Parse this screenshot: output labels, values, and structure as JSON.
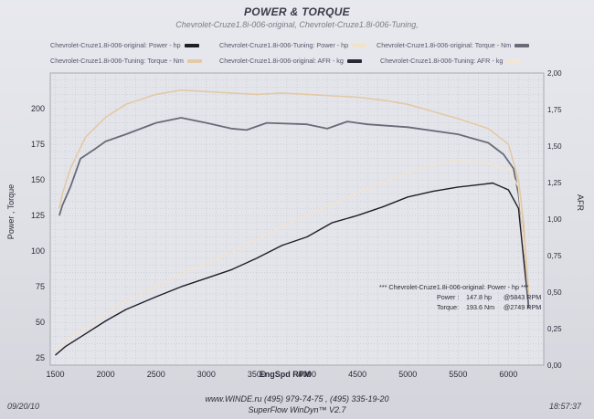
{
  "header": {
    "title": "POWER & TORQUE",
    "subtitle": "Chevrolet-Cruze1.8i-006-original, Chevrolet-Cruze1.8i-006-Tuning,"
  },
  "legend": [
    {
      "label": "Chevrolet-Cruze1.8i-006-original: Power - hp",
      "color": "#1e1e24"
    },
    {
      "label": "Chevrolet-Cruze1.8i-006-Tuning: Power - hp",
      "color": "#f2e2cc"
    },
    {
      "label": "Chevrolet-Cruze1.8i-006-original: Torque - Nm",
      "color": "#6a6a78"
    },
    {
      "label": "Chevrolet-Cruze1.8i-006-Tuning: Torque - Nm",
      "color": "#e3c9a5"
    },
    {
      "label": "Chevrolet-Cruze1.8i-006-original: AFR - kg",
      "color": "#2a2a36"
    },
    {
      "label": "Chevrolet-Cruze1.8i-006-Tuning: AFR - kg",
      "color": "#f3e6d6"
    }
  ],
  "info_box": {
    "heading": "*** Chevrolet-Cruze1.8i-006-original: Power - hp ***",
    "power_label": "Power :",
    "power_value": "147.8 hp",
    "power_at": "@5843 RPM",
    "torque_label": "Torque:",
    "torque_value": "193.6 Nm",
    "torque_at": "@2749 RPM"
  },
  "footer": {
    "date": "09/20/10",
    "time": "18:57:37",
    "contact": "www.WINDE.ru   (495) 979-74-75 , (495) 335-19-20",
    "software": "SuperFlow WinDyn™ V2.7"
  },
  "chart_data": {
    "type": "line",
    "title": "POWER & TORQUE",
    "xlabel": "EngSpd  RPM",
    "ylabel": "Power , Torque",
    "y2label": "AFR",
    "xlim": [
      1450,
      6350
    ],
    "ylim": [
      20,
      225
    ],
    "y2lim": [
      0,
      2.0
    ],
    "x_ticks": [
      1500,
      2000,
      2500,
      3000,
      3500,
      4000,
      4500,
      5000,
      5500,
      6000
    ],
    "y_ticks": [
      25,
      50,
      75,
      100,
      125,
      150,
      175,
      200
    ],
    "y2_ticks": [
      "0,00",
      "0,25",
      "0,50",
      "0,75",
      "1,00",
      "1,25",
      "1,50",
      "1,75",
      "2,00"
    ],
    "grid": true,
    "series": [
      {
        "name": "Chevrolet-Cruze1.8i-006-original: Power - hp",
        "color": "#1e1e24",
        "width": 1.4,
        "x": [
          1500,
          1600,
          1800,
          2000,
          2200,
          2500,
          2749,
          3000,
          3250,
          3500,
          3750,
          4000,
          4250,
          4500,
          4750,
          5000,
          5250,
          5500,
          5750,
          5843,
          6000,
          6100,
          6200
        ],
        "y": [
          27,
          33,
          42,
          51,
          59,
          68,
          75,
          81,
          87,
          95,
          104,
          110,
          120,
          125,
          131,
          138,
          142,
          145,
          147,
          147.8,
          143,
          130,
          60
        ]
      },
      {
        "name": "Chevrolet-Cruze1.8i-006-original: Torque - Nm",
        "color": "#6a6a78",
        "width": 1.8,
        "x": [
          1540,
          1570,
          1650,
          1750,
          1900,
          2000,
          2200,
          2500,
          2749,
          3000,
          3250,
          3400,
          3600,
          4000,
          4200,
          4400,
          4600,
          5000,
          5500,
          5800,
          5950,
          6050,
          6100,
          6150,
          6200
        ],
        "y": [
          125,
          132,
          145,
          165,
          172,
          177,
          182,
          190,
          193.6,
          190,
          186,
          185,
          190,
          189,
          186,
          191,
          189,
          187,
          182,
          176,
          168,
          158,
          140,
          110,
          60
        ]
      },
      {
        "name": "Chevrolet-Cruze1.8i-006-Tuning: Power - hp",
        "color": "#f2e2cc",
        "width": 1.4,
        "x": [
          1500,
          1600,
          1800,
          2000,
          2200,
          2500,
          2750,
          3000,
          3250,
          3500,
          3750,
          4000,
          4250,
          4500,
          4750,
          5000,
          5250,
          5500,
          5750,
          6000,
          6100,
          6200
        ],
        "y": [
          30,
          37,
          46,
          56,
          65,
          75,
          84,
          91,
          99,
          108,
          117,
          125,
          133,
          141,
          148,
          155,
          160,
          164,
          162,
          158,
          145,
          70
        ]
      },
      {
        "name": "Chevrolet-Cruze1.8i-006-Tuning: Torque - Nm",
        "color": "#e3c9a5",
        "width": 1.6,
        "x": [
          1540,
          1570,
          1650,
          1800,
          2000,
          2200,
          2500,
          2750,
          3000,
          3250,
          3500,
          3750,
          4000,
          4250,
          4500,
          4750,
          5000,
          5250,
          5500,
          5800,
          6000,
          6100,
          6150,
          6200
        ],
        "y": [
          130,
          140,
          158,
          180,
          194,
          203,
          210,
          213,
          212,
          211,
          210,
          211,
          210,
          209,
          208,
          206,
          203,
          198,
          193,
          186,
          175,
          150,
          120,
          70
        ]
      }
    ]
  }
}
